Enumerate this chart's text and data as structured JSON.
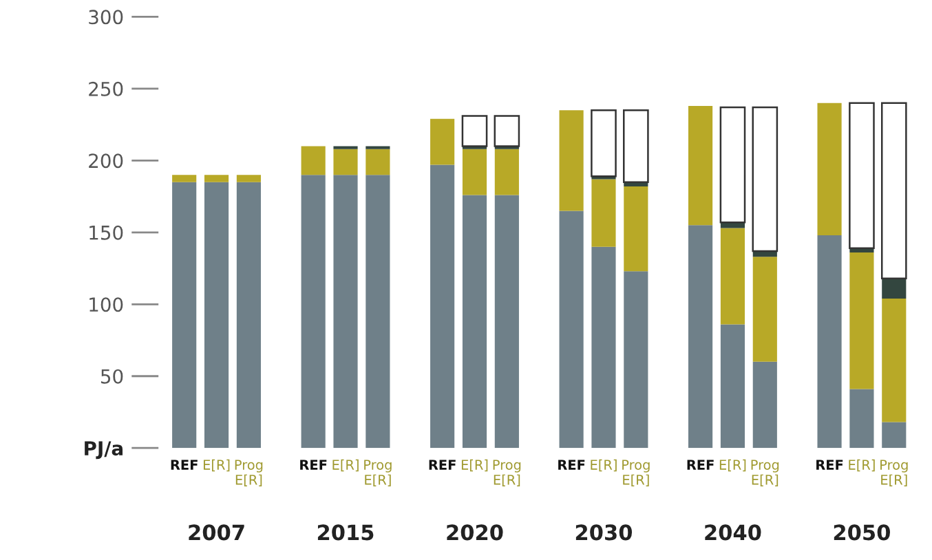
{
  "chart_data": {
    "type": "bar",
    "stacked": true,
    "categories": [
      "REF",
      "E[R]",
      "Prog\nE[R]",
      "REF",
      "E[R]",
      "Prog\nE[R]",
      "REF",
      "E[R]",
      "Prog\nE[R]",
      "REF",
      "E[R]",
      "Prog\nE[R]",
      "REF",
      "E[R]",
      "Prog\nE[R]",
      "REF",
      "E[R]",
      "Prog\nE[R]"
    ],
    "series": [
      {
        "color": "#6f8089",
        "values": [
          185,
          185,
          185,
          190,
          190,
          190,
          197,
          176,
          176,
          165,
          140,
          123,
          155,
          86,
          60,
          148,
          41,
          18
        ]
      },
      {
        "color": "#b8a927",
        "values": [
          5,
          5,
          5,
          20,
          18,
          18,
          32,
          32,
          32,
          70,
          47,
          59,
          83,
          67,
          73,
          92,
          95,
          86
        ]
      },
      {
        "color": "#33463f",
        "values": [
          0,
          0,
          0,
          0,
          2,
          2,
          0,
          2,
          2,
          0,
          2,
          3,
          0,
          4,
          4,
          0,
          3,
          14
        ]
      },
      {
        "color": "#ffffff",
        "values": [
          0,
          0,
          0,
          0,
          0,
          0,
          0,
          21,
          21,
          0,
          46,
          50,
          0,
          80,
          100,
          0,
          101,
          122
        ]
      }
    ],
    "ylim": [
      0,
      300
    ],
    "yticks": [
      {
        "value": 0,
        "label": "PJ/a"
      },
      50,
      100,
      150,
      200,
      250,
      300
    ],
    "annotations": [
      "2007",
      "2015",
      "2020",
      "2030",
      "2040",
      "2050"
    ],
    "grid": false,
    "legend": false
  }
}
